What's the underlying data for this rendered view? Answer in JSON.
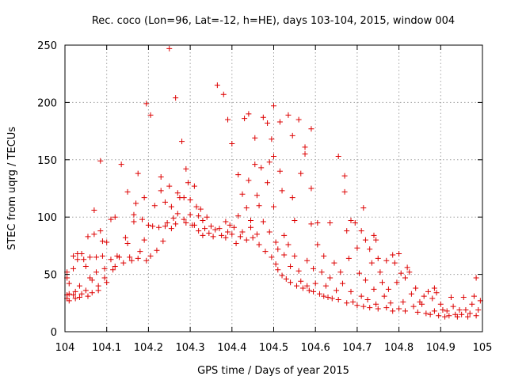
{
  "chart_data": {
    "type": "scatter",
    "title": "Rec. coco (Lon=96, Lat=-12, h=HE), days 103-104, 2015, window 004",
    "xlabel": "GPS time / Days of year 2015",
    "ylabel": "STEC from uqrg / TECUs",
    "xlim": [
      104,
      105
    ],
    "ylim": [
      0,
      250
    ],
    "x_ticks": [
      104,
      104.1,
      104.2,
      104.3,
      104.4,
      104.5,
      104.6,
      104.7,
      104.8,
      104.9,
      105
    ],
    "x_tick_labels": [
      "104",
      "104.1",
      "104.2",
      "104.3",
      "104.4",
      "104.5",
      "104.6",
      "104.7",
      "104.8",
      "104.9",
      "105"
    ],
    "y_ticks": [
      0,
      50,
      100,
      150,
      200,
      250
    ],
    "y_tick_labels": [
      "0",
      "50",
      "100",
      "150",
      "200",
      "250"
    ],
    "grid": true,
    "marker": "plus",
    "color": "#dd0000",
    "series": [
      {
        "values": [
          [
            104.005,
            52
          ],
          [
            104.005,
            47
          ],
          [
            104.005,
            32
          ],
          [
            104.005,
            29
          ],
          [
            104.01,
            33
          ],
          [
            104.01,
            27
          ],
          [
            104.01,
            42
          ],
          [
            104.02,
            66
          ],
          [
            104.02,
            55
          ],
          [
            104.02,
            32
          ],
          [
            104.025,
            29
          ],
          [
            104.025,
            35
          ],
          [
            104.03,
            68
          ],
          [
            104.03,
            63
          ],
          [
            104.035,
            40
          ],
          [
            104.035,
            30
          ],
          [
            104.04,
            33
          ],
          [
            104.04,
            68
          ],
          [
            104.045,
            63
          ],
          [
            104.05,
            57
          ],
          [
            104.05,
            36
          ],
          [
            104.055,
            31
          ],
          [
            104.055,
            83
          ],
          [
            104.06,
            65
          ],
          [
            104.06,
            47
          ],
          [
            104.065,
            34
          ],
          [
            104.065,
            45
          ],
          [
            104.07,
            106
          ],
          [
            104.07,
            85
          ],
          [
            104.075,
            65
          ],
          [
            104.075,
            52
          ],
          [
            104.08,
            40
          ],
          [
            104.08,
            36
          ],
          [
            104.085,
            149
          ],
          [
            104.085,
            88
          ],
          [
            104.09,
            79
          ],
          [
            104.09,
            66
          ],
          [
            104.095,
            55
          ],
          [
            104.095,
            47
          ],
          [
            104.1,
            43
          ],
          [
            104.1,
            78
          ],
          [
            104.11,
            98
          ],
          [
            104.11,
            63
          ],
          [
            104.115,
            54
          ],
          [
            104.12,
            100
          ],
          [
            104.12,
            57
          ],
          [
            104.125,
            66
          ],
          [
            104.13,
            65
          ],
          [
            104.135,
            146
          ],
          [
            104.14,
            60
          ],
          [
            104.145,
            82
          ],
          [
            104.15,
            122
          ],
          [
            104.15,
            77
          ],
          [
            104.155,
            65
          ],
          [
            104.16,
            62
          ],
          [
            104.165,
            102
          ],
          [
            104.165,
            96
          ],
          [
            104.17,
            112
          ],
          [
            104.175,
            138
          ],
          [
            104.175,
            64
          ],
          [
            104.18,
            70
          ],
          [
            104.185,
            98
          ],
          [
            104.19,
            117
          ],
          [
            104.19,
            80
          ],
          [
            104.195,
            199
          ],
          [
            104.195,
            62
          ],
          [
            104.2,
            93
          ],
          [
            104.205,
            189
          ],
          [
            104.205,
            66
          ],
          [
            104.21,
            92
          ],
          [
            104.215,
            110
          ],
          [
            104.22,
            71
          ],
          [
            104.225,
            91
          ],
          [
            104.23,
            123
          ],
          [
            104.23,
            135
          ],
          [
            104.235,
            79
          ],
          [
            104.24,
            113
          ],
          [
            104.24,
            92
          ],
          [
            104.245,
            95
          ],
          [
            104.25,
            247
          ],
          [
            104.25,
            127
          ],
          [
            104.255,
            109
          ],
          [
            104.255,
            90
          ],
          [
            104.26,
            99
          ],
          [
            104.265,
            204
          ],
          [
            104.265,
            94
          ],
          [
            104.27,
            121
          ],
          [
            104.27,
            103
          ],
          [
            104.275,
            117
          ],
          [
            104.28,
            166
          ],
          [
            104.285,
            98
          ],
          [
            104.285,
            117
          ],
          [
            104.29,
            142
          ],
          [
            104.29,
            95
          ],
          [
            104.295,
            130
          ],
          [
            104.3,
            115
          ],
          [
            104.3,
            102
          ],
          [
            104.305,
            93
          ],
          [
            104.31,
            127
          ],
          [
            104.31,
            93
          ],
          [
            104.315,
            109
          ],
          [
            104.32,
            101
          ],
          [
            104.32,
            88
          ],
          [
            104.325,
            107
          ],
          [
            104.33,
            97
          ],
          [
            104.33,
            84
          ],
          [
            104.335,
            90
          ],
          [
            104.34,
            100
          ],
          [
            104.345,
            86
          ],
          [
            104.35,
            92
          ],
          [
            104.355,
            83
          ],
          [
            104.36,
            89
          ],
          [
            104.365,
            215
          ],
          [
            104.37,
            90
          ],
          [
            104.375,
            84
          ],
          [
            104.38,
            207
          ],
          [
            104.385,
            96
          ],
          [
            104.385,
            82
          ],
          [
            104.39,
            185
          ],
          [
            104.39,
            87
          ],
          [
            104.395,
            93
          ],
          [
            104.4,
            164
          ],
          [
            104.4,
            85
          ],
          [
            104.405,
            91
          ],
          [
            104.41,
            77
          ],
          [
            104.415,
            137
          ],
          [
            104.415,
            101
          ],
          [
            104.42,
            83
          ],
          [
            104.425,
            120
          ],
          [
            104.425,
            87
          ],
          [
            104.43,
            186
          ],
          [
            104.435,
            108
          ],
          [
            104.435,
            80
          ],
          [
            104.44,
            190
          ],
          [
            104.44,
            132
          ],
          [
            104.445,
            97
          ],
          [
            104.445,
            91
          ],
          [
            104.45,
            82
          ],
          [
            104.455,
            169
          ],
          [
            104.455,
            146
          ],
          [
            104.46,
            119
          ],
          [
            104.46,
            85
          ],
          [
            104.465,
            110
          ],
          [
            104.465,
            76
          ],
          [
            104.47,
            143
          ],
          [
            104.475,
            187
          ],
          [
            104.475,
            96
          ],
          [
            104.48,
            70
          ],
          [
            104.485,
            182
          ],
          [
            104.485,
            130
          ],
          [
            104.49,
            148
          ],
          [
            104.49,
            87
          ],
          [
            104.495,
            168
          ],
          [
            104.495,
            65
          ],
          [
            104.5,
            197
          ],
          [
            104.5,
            153
          ],
          [
            104.5,
            109
          ],
          [
            104.505,
            78
          ],
          [
            104.505,
            59
          ],
          [
            104.51,
            72
          ],
          [
            104.51,
            54
          ],
          [
            104.515,
            183
          ],
          [
            104.515,
            140
          ],
          [
            104.52,
            123
          ],
          [
            104.52,
            49
          ],
          [
            104.525,
            84
          ],
          [
            104.525,
            67
          ],
          [
            104.53,
            46
          ],
          [
            104.535,
            189
          ],
          [
            104.535,
            76
          ],
          [
            104.54,
            57
          ],
          [
            104.54,
            43
          ],
          [
            104.545,
            117
          ],
          [
            104.545,
            171
          ],
          [
            104.55,
            97
          ],
          [
            104.55,
            66
          ],
          [
            104.555,
            40
          ],
          [
            104.56,
            185
          ],
          [
            104.56,
            53
          ],
          [
            104.565,
            138
          ],
          [
            104.565,
            44
          ],
          [
            104.57,
            38
          ],
          [
            104.575,
            161
          ],
          [
            104.575,
            155
          ],
          [
            104.58,
            62
          ],
          [
            104.58,
            40
          ],
          [
            104.585,
            36
          ],
          [
            104.59,
            177
          ],
          [
            104.59,
            125
          ],
          [
            104.59,
            94
          ],
          [
            104.595,
            55
          ],
          [
            104.595,
            35
          ],
          [
            104.6,
            42
          ],
          [
            104.605,
            95
          ],
          [
            104.605,
            76
          ],
          [
            104.61,
            33
          ],
          [
            104.615,
            52
          ],
          [
            104.62,
            66
          ],
          [
            104.62,
            31
          ],
          [
            104.625,
            40
          ],
          [
            104.63,
            30
          ],
          [
            104.635,
            95
          ],
          [
            104.635,
            47
          ],
          [
            104.64,
            29
          ],
          [
            104.645,
            60
          ],
          [
            104.65,
            36
          ],
          [
            104.655,
            153
          ],
          [
            104.655,
            28
          ],
          [
            104.66,
            52
          ],
          [
            104.665,
            42
          ],
          [
            104.67,
            136
          ],
          [
            104.67,
            122
          ],
          [
            104.675,
            88
          ],
          [
            104.675,
            25
          ],
          [
            104.68,
            64
          ],
          [
            104.685,
            97
          ],
          [
            104.685,
            35
          ],
          [
            104.69,
            26
          ],
          [
            104.695,
            95
          ],
          [
            104.7,
            73
          ],
          [
            104.7,
            23
          ],
          [
            104.705,
            51
          ],
          [
            104.71,
            88
          ],
          [
            104.71,
            31
          ],
          [
            104.715,
            108
          ],
          [
            104.715,
            22
          ],
          [
            104.72,
            80
          ],
          [
            104.72,
            45
          ],
          [
            104.725,
            28
          ],
          [
            104.73,
            72
          ],
          [
            104.73,
            21
          ],
          [
            104.735,
            60
          ],
          [
            104.74,
            84
          ],
          [
            104.74,
            37
          ],
          [
            104.745,
            80
          ],
          [
            104.745,
            24
          ],
          [
            104.75,
            64
          ],
          [
            104.75,
            20
          ],
          [
            104.755,
            52
          ],
          [
            104.76,
            43
          ],
          [
            104.765,
            31
          ],
          [
            104.77,
            62
          ],
          [
            104.77,
            21
          ],
          [
            104.775,
            37
          ],
          [
            104.78,
            25
          ],
          [
            104.785,
            67
          ],
          [
            104.785,
            18
          ],
          [
            104.79,
            60
          ],
          [
            104.795,
            43
          ],
          [
            104.8,
            68
          ],
          [
            104.8,
            20
          ],
          [
            104.805,
            51
          ],
          [
            104.81,
            26
          ],
          [
            104.815,
            47
          ],
          [
            104.815,
            18
          ],
          [
            104.82,
            56
          ],
          [
            104.825,
            52
          ],
          [
            104.83,
            33
          ],
          [
            104.835,
            22
          ],
          [
            104.84,
            38
          ],
          [
            104.845,
            17
          ],
          [
            104.85,
            26
          ],
          [
            104.855,
            24
          ],
          [
            104.86,
            31
          ],
          [
            104.865,
            16
          ],
          [
            104.87,
            35
          ],
          [
            104.875,
            15
          ],
          [
            104.88,
            29
          ],
          [
            104.885,
            38
          ],
          [
            104.885,
            18
          ],
          [
            104.89,
            34
          ],
          [
            104.895,
            14
          ],
          [
            104.9,
            24
          ],
          [
            104.905,
            19
          ],
          [
            104.91,
            13
          ],
          [
            104.915,
            18
          ],
          [
            104.92,
            14
          ],
          [
            104.925,
            30
          ],
          [
            104.93,
            22
          ],
          [
            104.935,
            15
          ],
          [
            104.94,
            13
          ],
          [
            104.945,
            19
          ],
          [
            104.95,
            15
          ],
          [
            104.955,
            30
          ],
          [
            104.96,
            19
          ],
          [
            104.965,
            13
          ],
          [
            104.97,
            16
          ],
          [
            104.975,
            24
          ],
          [
            104.98,
            31
          ],
          [
            104.985,
            47
          ],
          [
            104.985,
            14
          ],
          [
            104.99,
            19
          ],
          [
            104.995,
            27
          ]
        ]
      }
    ]
  }
}
